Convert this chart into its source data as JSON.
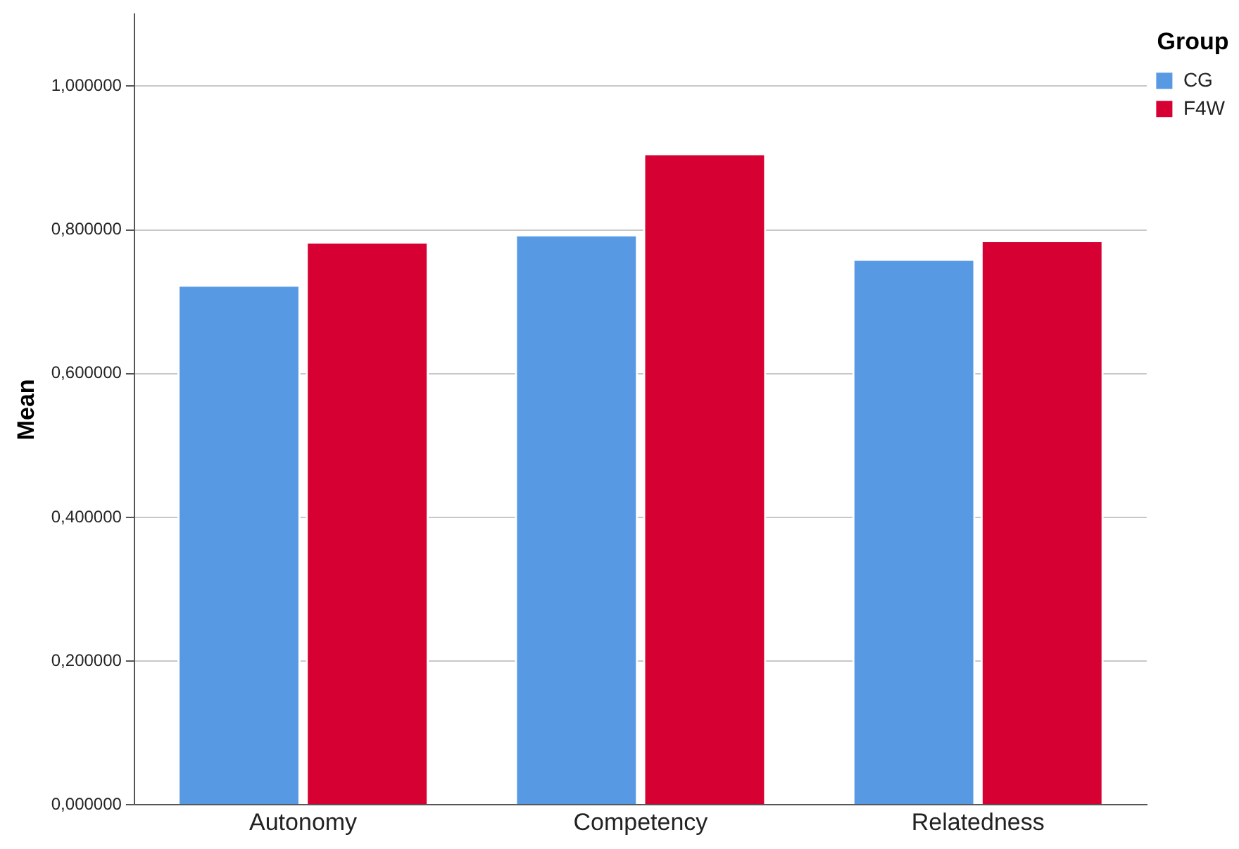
{
  "chart_data": {
    "type": "bar",
    "ylabel": "Mean",
    "legend_title": "Group",
    "categories": [
      "Autonomy",
      "Competency",
      "Relatedness"
    ],
    "series": [
      {
        "name": "CG",
        "color": "#5899e4",
        "values": [
          0.724,
          0.794,
          0.76
        ]
      },
      {
        "name": "F4W",
        "color": "#d60032",
        "values": [
          0.784,
          0.907,
          0.786
        ]
      }
    ],
    "ylim": [
      0,
      1.1
    ],
    "yticks": [
      {
        "value": 0,
        "label": "0,000000"
      },
      {
        "value": 0.2,
        "label": "0,200000"
      },
      {
        "value": 0.4,
        "label": "0,400000"
      },
      {
        "value": 0.6,
        "label": "0,600000"
      },
      {
        "value": 0.8,
        "label": "0,800000"
      },
      {
        "value": 1,
        "label": "1,000000"
      }
    ],
    "grid": "y",
    "legend": "top right"
  }
}
